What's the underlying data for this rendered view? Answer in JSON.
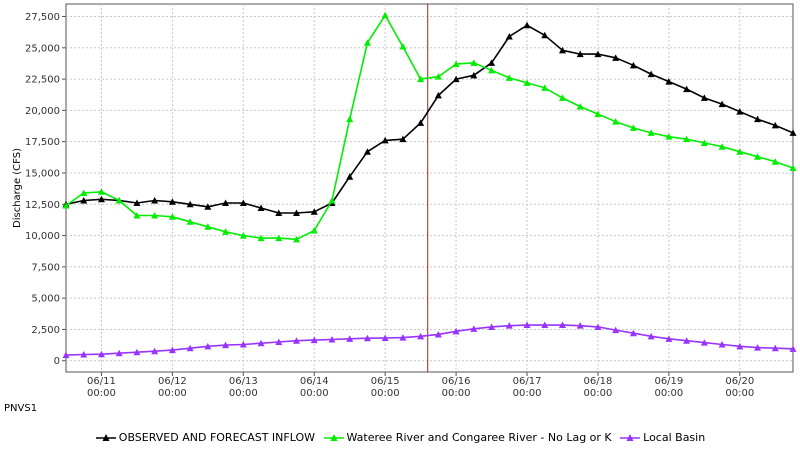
{
  "location_label": "PNVS1",
  "chart_data": {
    "type": "line",
    "ylabel": "Discharge (CFS)",
    "ylim": [
      -900,
      28500
    ],
    "yticks": [
      0,
      2500,
      5000,
      7500,
      10000,
      12500,
      15000,
      17500,
      20000,
      22500,
      25000,
      27500
    ],
    "ytick_labels": [
      "0",
      "2,500",
      "5,000",
      "7,500",
      "10,000",
      "12,500",
      "15,000",
      "17,500",
      "20,000",
      "22,500",
      "25,000",
      "27,500"
    ],
    "xlim": [
      10.5,
      20.75
    ],
    "xticks": [
      11,
      12,
      13,
      14,
      15,
      16,
      17,
      18,
      19,
      20
    ],
    "xtick_labels": [
      "06/11\n00:00",
      "06/12\n00:00",
      "06/13\n00:00",
      "06/14\n00:00",
      "06/15\n00:00",
      "06/16\n00:00",
      "06/17\n00:00",
      "06/18\n00:00",
      "06/19\n00:00",
      "06/20\n00:00"
    ],
    "current_time_x": 15.6,
    "grid": true,
    "legend_position": "bottom",
    "series": [
      {
        "name": "OBSERVED AND FORECAST INFLOW",
        "color": "#000000",
        "x": [
          10.5,
          10.75,
          11,
          11.25,
          11.5,
          11.75,
          12,
          12.25,
          12.5,
          12.75,
          13,
          13.25,
          13.5,
          13.75,
          14,
          14.25,
          14.5,
          14.75,
          15,
          15.25,
          15.5,
          15.75,
          16,
          16.25,
          16.5,
          16.75,
          17,
          17.25,
          17.5,
          17.75,
          18,
          18.25,
          18.5,
          18.75,
          19,
          19.25,
          19.5,
          19.75,
          20,
          20.25,
          20.5,
          20.75
        ],
        "y": [
          12500,
          12800,
          12900,
          12800,
          12600,
          12800,
          12700,
          12500,
          12300,
          12600,
          12600,
          12200,
          11800,
          11800,
          11900,
          12600,
          14700,
          16700,
          17600,
          17700,
          19000,
          21200,
          22500,
          22800,
          23800,
          25900,
          26800,
          26000,
          24800,
          24500,
          24500,
          24200,
          23600,
          22900,
          22300,
          21700,
          21000,
          20500,
          19900,
          19300,
          18800,
          18200
        ]
      },
      {
        "name": "Wateree River and Congaree River - No Lag or K",
        "color": "#00ee00",
        "x": [
          10.5,
          10.75,
          11,
          11.25,
          11.5,
          11.75,
          12,
          12.25,
          12.5,
          12.75,
          13,
          13.25,
          13.5,
          13.75,
          14,
          14.25,
          14.5,
          14.75,
          15,
          15.25,
          15.5,
          15.75,
          16,
          16.25,
          16.5,
          16.75,
          17,
          17.25,
          17.5,
          17.75,
          18,
          18.25,
          18.5,
          18.75,
          19,
          19.25,
          19.5,
          19.75,
          20,
          20.25,
          20.5,
          20.75
        ],
        "y": [
          12400,
          13400,
          13500,
          12800,
          11600,
          11600,
          11500,
          11100,
          10700,
          10300,
          10000,
          9800,
          9800,
          9700,
          10400,
          12800,
          19300,
          25400,
          27600,
          25100,
          22500,
          22700,
          23700,
          23800,
          23200,
          22600,
          22200,
          21800,
          21000,
          20300,
          19700,
          19100,
          18600,
          18200,
          17900,
          17700,
          17400,
          17100,
          16700,
          16300,
          15900,
          15400
        ]
      },
      {
        "name": "Local Basin",
        "color": "#9933ff",
        "x": [
          10.5,
          10.75,
          11,
          11.25,
          11.5,
          11.75,
          12,
          12.25,
          12.5,
          12.75,
          13,
          13.25,
          13.5,
          13.75,
          14,
          14.25,
          14.5,
          14.75,
          15,
          15.25,
          15.5,
          15.75,
          16,
          16.25,
          16.5,
          16.75,
          17,
          17.25,
          17.5,
          17.75,
          18,
          18.25,
          18.5,
          18.75,
          19,
          19.25,
          19.5,
          19.75,
          20,
          20.25,
          20.5,
          20.75
        ],
        "y": [
          450,
          500,
          520,
          600,
          680,
          760,
          850,
          1000,
          1150,
          1250,
          1300,
          1400,
          1500,
          1600,
          1650,
          1700,
          1750,
          1800,
          1820,
          1850,
          1950,
          2100,
          2350,
          2550,
          2700,
          2800,
          2850,
          2850,
          2850,
          2800,
          2700,
          2450,
          2200,
          1950,
          1750,
          1600,
          1450,
          1300,
          1150,
          1050,
          1000,
          950
        ]
      }
    ]
  }
}
